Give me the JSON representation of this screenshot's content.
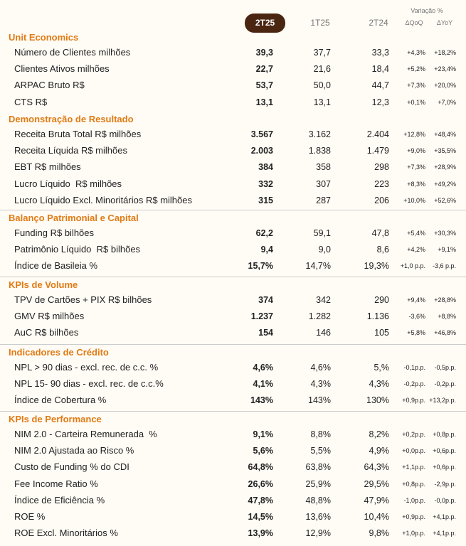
{
  "header": {
    "variation_label": "Variação %",
    "columns": [
      "2T25",
      "1T25",
      "2T24",
      "ΔQoQ",
      "ΔYoY"
    ]
  },
  "sections": [
    {
      "title": "Unit Economics",
      "rows": [
        {
          "label": "Número de Clientes milhões",
          "values": [
            "39,3",
            "37,7",
            "33,3",
            "+4,3%",
            "+18,2%"
          ]
        },
        {
          "label": "Clientes Ativos milhões",
          "values": [
            "22,7",
            "21,6",
            "18,4",
            "+5,2%",
            "+23,4%"
          ]
        },
        {
          "label": "ARPAC Bruto R$",
          "values": [
            "53,7",
            "50,0",
            "44,7",
            "+7,3%",
            "+20,0%"
          ]
        },
        {
          "label": "CTS R$",
          "values": [
            "13,1",
            "13,1",
            "12,3",
            "+0,1%",
            "+7,0%"
          ]
        }
      ]
    },
    {
      "title": "Demonstração de Resultado",
      "rows": [
        {
          "label": "Receita Bruta Total R$ milhões",
          "values": [
            "3.567",
            "3.162",
            "2.404",
            "+12,8%",
            "+48,4%"
          ]
        },
        {
          "label": "Receita Líquida R$ milhões",
          "values": [
            "2.003",
            "1.838",
            "1.479",
            "+9,0%",
            "+35,5%"
          ]
        },
        {
          "label": "EBT R$ milhões",
          "values": [
            "384",
            "358",
            "298",
            "+7,3%",
            "+28,9%"
          ]
        },
        {
          "label": "Lucro Líquido  R$ milhões",
          "values": [
            "332",
            "307",
            "223",
            "+8,3%",
            "+49,2%"
          ]
        },
        {
          "label": "Lucro Líquido Excl. Minoritários R$ milhões",
          "values": [
            "315",
            "287",
            "206",
            "+10,0%",
            "+52,6%"
          ]
        }
      ]
    },
    {
      "title": "Balanço Patrimonial e Capital",
      "rows": [
        {
          "label": "Funding R$ bilhões",
          "values": [
            "62,2",
            "59,1",
            "47,8",
            "+5,4%",
            "+30,3%"
          ]
        },
        {
          "label": "Patrimônio Líquido  R$ bilhões",
          "values": [
            "9,4",
            "9,0",
            "8,6",
            "+4,2%",
            "+9,1%"
          ]
        },
        {
          "label": "Índice de Basileia %",
          "values": [
            "15,7%",
            "14,7%",
            "19,3%",
            "+1,0 p.p.",
            "-3,6 p.p."
          ]
        }
      ]
    },
    {
      "title": "KPIs de Volume",
      "rows": [
        {
          "label": "TPV de Cartões + PIX R$ bilhões",
          "values": [
            "374",
            "342",
            "290",
            "+9,4%",
            "+28,8%"
          ]
        },
        {
          "label": "GMV R$ milhões",
          "values": [
            "1.237",
            "1.282",
            "1.136",
            "-3,6%",
            "+8,8%"
          ]
        },
        {
          "label": "AuC R$ bilhões",
          "values": [
            "154",
            "146",
            "105",
            "+5,8%",
            "+46,8%"
          ]
        }
      ]
    },
    {
      "title": "Indicadores de Crédito",
      "rows": [
        {
          "label": "NPL > 90 dias - excl. rec. de c.c. %",
          "values": [
            "4,6%",
            "4,6%",
            "5,%",
            "-0,1p.p.",
            "-0,5p.p."
          ]
        },
        {
          "label": "NPL 15- 90 dias - excl. rec. de c.c.%",
          "values": [
            "4,1%",
            "4,3%",
            "4,3%",
            "-0,2p.p.",
            "-0,2p.p."
          ]
        },
        {
          "label": "Índice de Cobertura %",
          "values": [
            "143%",
            "143%",
            "130%",
            "+0,9p.p.",
            "+13,2p.p."
          ]
        }
      ]
    },
    {
      "title": "KPIs de Performance",
      "rows": [
        {
          "label": "NIM 2.0 - Carteira Remunerada  %",
          "values": [
            "9,1%",
            "8,8%",
            "8,2%",
            "+0,2p.p.",
            "+0,8p.p."
          ]
        },
        {
          "label": "NIM 2.0 Ajustada ao Risco %",
          "values": [
            "5,6%",
            "5,5%",
            "4,9%",
            "+0,0p.p.",
            "+0,6p.p."
          ]
        },
        {
          "label": "Custo de Funding % do CDI",
          "values": [
            "64,8%",
            "63,8%",
            "64,3%",
            "+1,1p.p.",
            "+0,6p.p."
          ]
        },
        {
          "label": "Fee Income Ratio %",
          "values": [
            "26,6%",
            "25,9%",
            "29,5%",
            "+0,8p.p.",
            "-2,9p.p."
          ]
        },
        {
          "label": "Índice de Eficiência %",
          "values": [
            "47,8%",
            "48,8%",
            "47,9%",
            "-1,0p.p.",
            "-0,0p.p."
          ]
        },
        {
          "label": "ROE %",
          "values": [
            "14,5%",
            "13,6%",
            "10,4%",
            "+0,9p.p.",
            "+4,1p.p."
          ]
        },
        {
          "label": "ROE Excl. Minoritários %",
          "values": [
            "13,9%",
            "12,9%",
            "9,8%",
            "+1,0p.p.",
            "+4,1p.p."
          ]
        }
      ]
    }
  ]
}
